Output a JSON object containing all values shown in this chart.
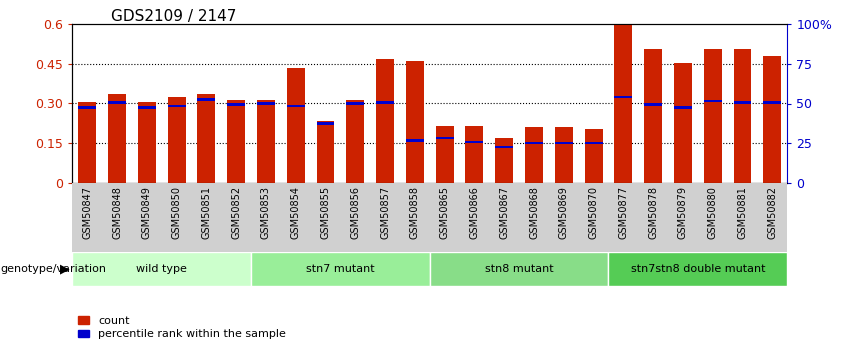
{
  "title": "GDS2109 / 2147",
  "samples": [
    "GSM50847",
    "GSM50848",
    "GSM50849",
    "GSM50850",
    "GSM50851",
    "GSM50852",
    "GSM50853",
    "GSM50854",
    "GSM50855",
    "GSM50856",
    "GSM50857",
    "GSM50858",
    "GSM50865",
    "GSM50866",
    "GSM50867",
    "GSM50868",
    "GSM50869",
    "GSM50870",
    "GSM50877",
    "GSM50878",
    "GSM50879",
    "GSM50880",
    "GSM50881",
    "GSM50882"
  ],
  "count_values": [
    0.305,
    0.335,
    0.305,
    0.325,
    0.335,
    0.315,
    0.315,
    0.435,
    0.235,
    0.315,
    0.47,
    0.46,
    0.215,
    0.215,
    0.17,
    0.21,
    0.21,
    0.205,
    0.61,
    0.505,
    0.455,
    0.505,
    0.505,
    0.48
  ],
  "percentile_values": [
    0.285,
    0.305,
    0.285,
    0.29,
    0.315,
    0.295,
    0.3,
    0.29,
    0.225,
    0.3,
    0.305,
    0.16,
    0.17,
    0.155,
    0.135,
    0.15,
    0.15,
    0.15,
    0.325,
    0.295,
    0.285,
    0.31,
    0.305,
    0.305
  ],
  "bar_color": "#cc2200",
  "percentile_color": "#0000cc",
  "ylim": [
    0,
    0.6
  ],
  "yticks": [
    0,
    0.15,
    0.3,
    0.45,
    0.6
  ],
  "ytick_labels": [
    "0",
    "0.15",
    "0.30",
    "0.45",
    "0.6"
  ],
  "y2ticks": [
    0,
    25,
    50,
    75,
    100
  ],
  "y2tick_labels": [
    "0",
    "25",
    "50",
    "75",
    "100%"
  ],
  "groups": [
    {
      "label": "wild type",
      "start": 0,
      "end": 5,
      "color": "#ccffcc"
    },
    {
      "label": "stn7 mutant",
      "start": 6,
      "end": 11,
      "color": "#99ee99"
    },
    {
      "label": "stn8 mutant",
      "start": 12,
      "end": 17,
      "color": "#88dd88"
    },
    {
      "label": "stn7stn8 double mutant",
      "start": 18,
      "end": 23,
      "color": "#55cc55"
    }
  ],
  "bar_width": 0.6,
  "tick_label_color_left": "#cc2200",
  "tick_label_color_right": "#0000cc",
  "left_label": "genotype/variation",
  "legend_count_label": "count",
  "legend_percentile_label": "percentile rank within the sample",
  "xtick_bg_color": "#d0d0d0",
  "group_border_color": "#ffffff"
}
